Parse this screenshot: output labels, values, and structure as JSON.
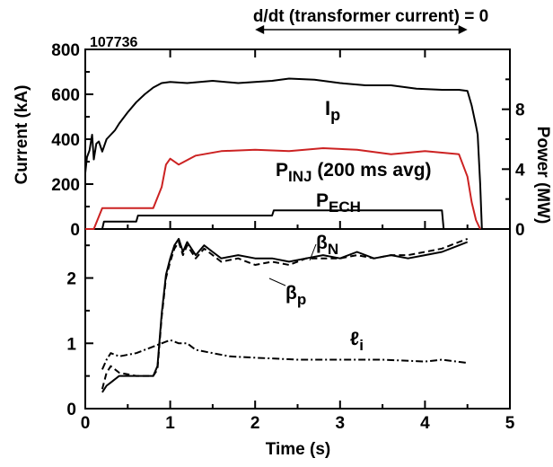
{
  "chart_data": [
    {
      "type": "line",
      "shot_label": "107736",
      "ylabel": "Current (kA)",
      "y2label": "Power (MW)",
      "xlim": [
        0,
        5
      ],
      "ylim": [
        0,
        800
      ],
      "y2lim": [
        0,
        12
      ],
      "yticks": [
        "0",
        "200",
        "400",
        "600",
        "800"
      ],
      "y2ticks": [
        "0",
        "4",
        "8"
      ],
      "grid": false,
      "top_annotation": "d/dt (transformer current) = 0",
      "top_arrow_range": [
        2.0,
        4.5
      ],
      "series": [
        {
          "name": "Ip",
          "label_main": "I",
          "label_sub": "p",
          "axis": "left",
          "color": "#000000",
          "style": "solid",
          "x": [
            0.0,
            0.02,
            0.05,
            0.08,
            0.1,
            0.13,
            0.16,
            0.2,
            0.25,
            0.3,
            0.35,
            0.4,
            0.5,
            0.6,
            0.7,
            0.8,
            0.9,
            1.0,
            1.2,
            1.5,
            1.8,
            2.0,
            2.2,
            2.4,
            2.7,
            3.0,
            3.3,
            3.6,
            3.9,
            4.2,
            4.4,
            4.5,
            4.55,
            4.6,
            4.62,
            4.65,
            4.67
          ],
          "values": [
            250,
            320,
            350,
            420,
            310,
            380,
            390,
            345,
            400,
            420,
            440,
            470,
            520,
            565,
            600,
            630,
            650,
            655,
            650,
            660,
            650,
            655,
            660,
            670,
            665,
            650,
            640,
            640,
            625,
            620,
            620,
            615,
            550,
            460,
            420,
            200,
            0
          ]
        },
        {
          "name": "PINJ (200 ms avg)",
          "label_main": "P",
          "label_sub": "INJ",
          "label_suffix": " (200 ms avg)",
          "axis": "right",
          "color": "#cc2222",
          "style": "solid",
          "x": [
            0.0,
            0.1,
            0.2,
            0.35,
            0.5,
            0.7,
            0.8,
            0.9,
            0.95,
            1.0,
            1.1,
            1.3,
            1.6,
            2.0,
            2.4,
            2.8,
            3.2,
            3.6,
            4.0,
            4.4,
            4.5,
            4.55,
            4.6,
            4.65
          ],
          "values": [
            0,
            0,
            1.4,
            1.4,
            1.4,
            1.4,
            1.4,
            2.8,
            4.3,
            4.7,
            4.3,
            4.9,
            5.2,
            5.3,
            5.2,
            5.4,
            5.3,
            5.0,
            5.2,
            5.0,
            3.5,
            1.8,
            0.6,
            0
          ]
        },
        {
          "name": "PECH",
          "label_main": "P",
          "label_sub": "ECH",
          "axis": "right",
          "color": "#000000",
          "style": "solid",
          "x": [
            0.2,
            0.22,
            0.6,
            0.62,
            1.0,
            2.0,
            2.2,
            2.22,
            3.0,
            4.0,
            4.2,
            4.22
          ],
          "values": [
            0,
            0.5,
            0.5,
            0.9,
            0.9,
            0.9,
            0.9,
            1.25,
            1.25,
            1.25,
            1.25,
            0
          ]
        }
      ]
    },
    {
      "type": "line",
      "xlabel": "Time (s)",
      "xlim": [
        0,
        5
      ],
      "ylim": [
        0,
        2.75
      ],
      "xticks": [
        "0",
        "1",
        "2",
        "3",
        "4",
        "5"
      ],
      "yticks": [
        "0",
        "1",
        "2"
      ],
      "grid": false,
      "series": [
        {
          "name": "βN",
          "label_main": "β",
          "label_sub": "N",
          "color": "#000000",
          "style": "solid",
          "x": [
            0.2,
            0.25,
            0.3,
            0.4,
            0.6,
            0.8,
            0.85,
            0.9,
            0.95,
            1.0,
            1.05,
            1.1,
            1.15,
            1.2,
            1.3,
            1.4,
            1.5,
            1.6,
            1.8,
            2.0,
            2.2,
            2.4,
            2.6,
            2.8,
            3.0,
            3.2,
            3.4,
            3.6,
            3.8,
            4.0,
            4.2,
            4.4,
            4.5
          ],
          "values": [
            0.25,
            0.35,
            0.4,
            0.5,
            0.5,
            0.5,
            0.65,
            1.45,
            2.05,
            2.3,
            2.5,
            2.6,
            2.4,
            2.55,
            2.35,
            2.5,
            2.4,
            2.3,
            2.35,
            2.3,
            2.3,
            2.25,
            2.3,
            2.35,
            2.3,
            2.4,
            2.3,
            2.35,
            2.3,
            2.35,
            2.4,
            2.5,
            2.55
          ]
        },
        {
          "name": "βp",
          "label_main": "β",
          "label_sub": "p",
          "color": "#000000",
          "style": "dashed",
          "x": [
            0.2,
            0.25,
            0.3,
            0.4,
            0.6,
            0.8,
            0.85,
            0.9,
            0.95,
            1.0,
            1.05,
            1.1,
            1.15,
            1.2,
            1.3,
            1.4,
            1.5,
            1.6,
            1.8,
            2.0,
            2.2,
            2.4,
            2.6,
            2.8,
            3.0,
            3.2,
            3.4,
            3.6,
            3.8,
            4.0,
            4.2,
            4.4,
            4.5
          ],
          "values": [
            0.3,
            0.55,
            0.65,
            0.55,
            0.5,
            0.5,
            0.6,
            1.4,
            2.0,
            2.25,
            2.45,
            2.55,
            2.35,
            2.5,
            2.3,
            2.45,
            2.35,
            2.25,
            2.3,
            2.2,
            2.25,
            2.2,
            2.3,
            2.3,
            2.3,
            2.35,
            2.3,
            2.35,
            2.35,
            2.4,
            2.45,
            2.55,
            2.6
          ]
        },
        {
          "name": "ℓi",
          "label_main": "ℓ",
          "label_sub": "i",
          "color": "#000000",
          "style": "dashdot",
          "x": [
            0.2,
            0.25,
            0.3,
            0.4,
            0.6,
            0.8,
            1.0,
            1.1,
            1.2,
            1.3,
            1.5,
            1.7,
            2.0,
            2.5,
            3.0,
            3.5,
            4.0,
            4.2,
            4.5
          ],
          "values": [
            0.6,
            0.75,
            0.85,
            0.8,
            0.85,
            0.95,
            1.05,
            1.0,
            1.0,
            0.9,
            0.85,
            0.8,
            0.78,
            0.75,
            0.75,
            0.75,
            0.72,
            0.75,
            0.7
          ]
        }
      ]
    }
  ]
}
